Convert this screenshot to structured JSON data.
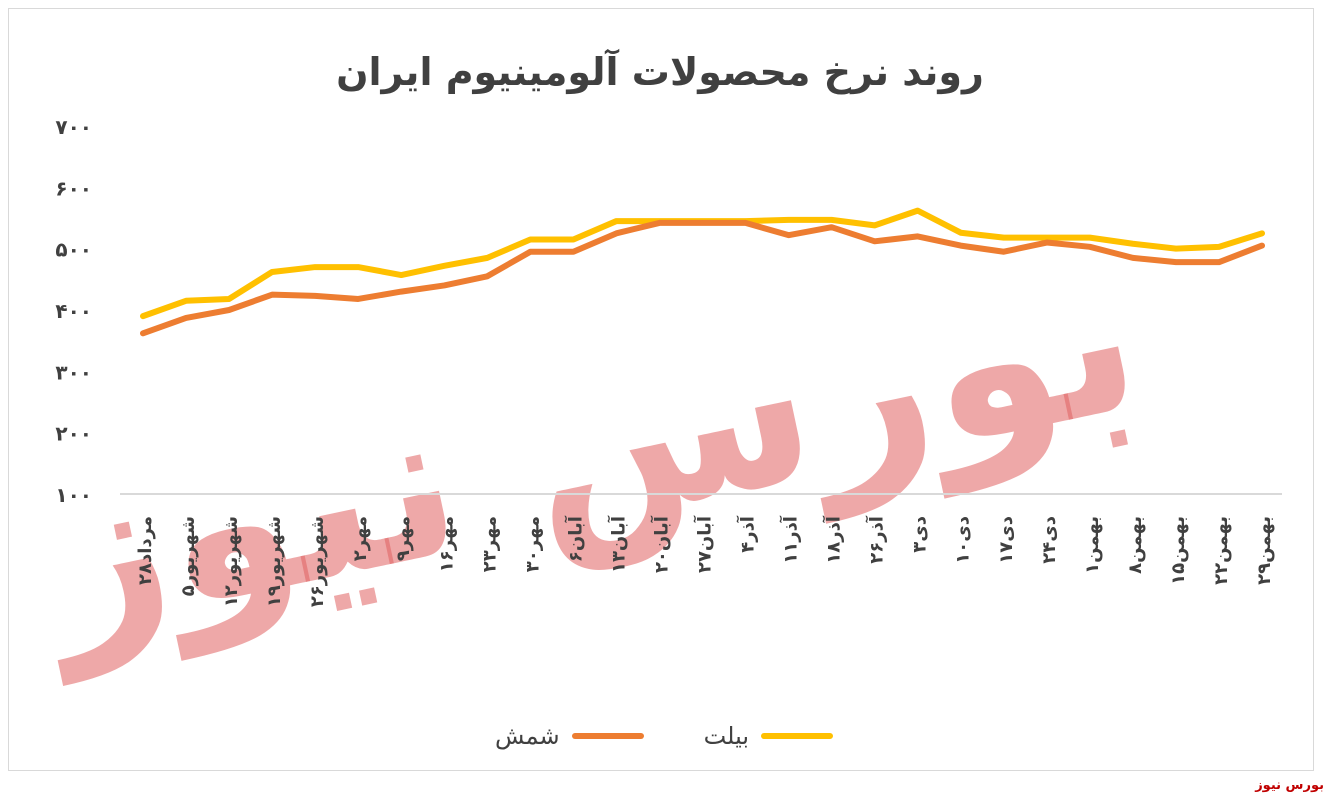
{
  "chart_data": {
    "type": "line",
    "title": "روند نرخ محصولات آلومینیوم ایران",
    "xlabel": "",
    "ylabel": "",
    "ylim": [
      100,
      700
    ],
    "yticks": [
      "۱۰۰",
      "۲۰۰",
      "۳۰۰",
      "۴۰۰",
      "۵۰۰",
      "۶۰۰",
      "۷۰۰"
    ],
    "categories": [
      "۲۸مرداد",
      "۵شهریور",
      "۱۲شهریور",
      "۱۹شهریور",
      "۲۶شهریور",
      "۲مهر",
      "۹مهر",
      "۱۶مهر",
      "۲۳مهر",
      "۳۰مهر",
      "۶آبان",
      "۱۳آبان",
      "۲۰آبان",
      "۲۷آبان",
      "۴آذر",
      "۱۱آذر",
      "۱۸آذر",
      "۲۶آذر",
      "۳دی",
      "۱۰دی",
      "۱۷دی",
      "۲۴دی",
      "۱بهمن",
      "۸بهمن",
      "۱۵بهمن",
      "۲۲بهمن",
      "۲۹بهمن"
    ],
    "grid": false,
    "legend_position": "bottom",
    "series": [
      {
        "name": "بیلت",
        "color": "#ffc000",
        "values": [
          390,
          415,
          418,
          462,
          470,
          470,
          457,
          472,
          485,
          515,
          515,
          545,
          545,
          545,
          545,
          547,
          547,
          538,
          562,
          526,
          518,
          518,
          518,
          508,
          500,
          503,
          525
        ]
      },
      {
        "name": "شمش",
        "color": "#ed7d31",
        "values": [
          362,
          387,
          400,
          425,
          423,
          418,
          430,
          440,
          455,
          495,
          495,
          525,
          542,
          542,
          542,
          522,
          535,
          512,
          520,
          505,
          495,
          510,
          503,
          485,
          478,
          478,
          505
        ]
      }
    ]
  },
  "watermark": {
    "text": "بورس نیوز",
    "color": "#e06060"
  },
  "source_label": "بورس نیوز"
}
